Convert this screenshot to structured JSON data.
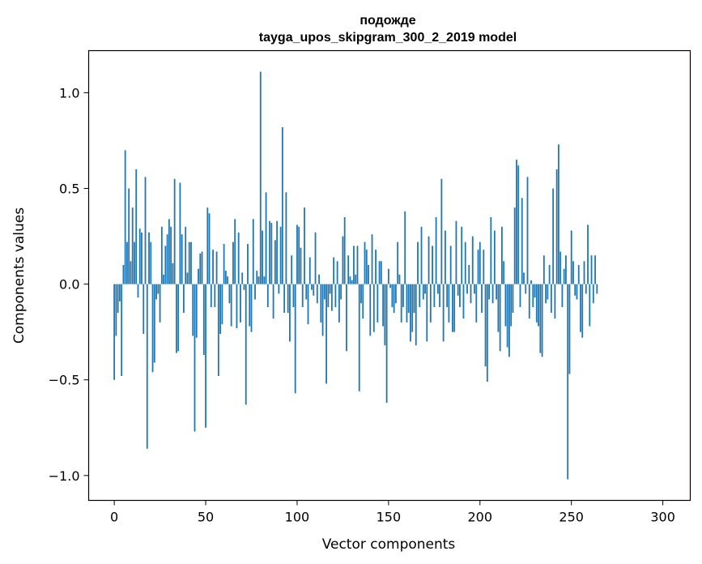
{
  "chart_data": {
    "type": "bar",
    "title_lines": [
      "подожде",
      "tayga_upos_skipgram_300_2_2019 model"
    ],
    "xlabel": "Vector components",
    "ylabel": "Components values",
    "xlim": [
      -14,
      315
    ],
    "ylim": [
      -1.13,
      1.22
    ],
    "xticks": [
      0,
      50,
      100,
      150,
      200,
      250,
      300
    ],
    "xtick_labels": [
      "0",
      "50",
      "100",
      "150",
      "200",
      "250",
      "300"
    ],
    "yticks": [
      -1.0,
      -0.5,
      0.0,
      0.5,
      1.0
    ],
    "ytick_labels": [
      "−1.0",
      "−0.5",
      "0.0",
      "0.5",
      "1.0"
    ],
    "bar_color": "#1f77b4",
    "values": [
      -0.5,
      -0.27,
      -0.15,
      -0.09,
      -0.48,
      0.1,
      0.7,
      0.22,
      0.5,
      0.12,
      0.4,
      0.22,
      0.6,
      -0.07,
      0.29,
      0.27,
      -0.26,
      0.56,
      -0.86,
      0.27,
      0.22,
      -0.46,
      -0.41,
      -0.08,
      -0.05,
      -0.2,
      0.3,
      0.05,
      0.2,
      0.26,
      0.34,
      0.3,
      0.11,
      0.55,
      -0.36,
      -0.35,
      0.53,
      0.26,
      -0.15,
      0.3,
      0.06,
      0.22,
      0.22,
      -0.27,
      -0.77,
      -0.28,
      0.08,
      0.16,
      0.17,
      -0.37,
      -0.75,
      0.4,
      0.37,
      -0.12,
      0.18,
      -0.12,
      0.17,
      -0.48,
      -0.26,
      -0.21,
      0.21,
      0.07,
      0.04,
      -0.1,
      -0.22,
      0.22,
      0.34,
      -0.23,
      0.27,
      -0.2,
      0.06,
      -0.03,
      -0.63,
      0.21,
      -0.22,
      -0.25,
      0.34,
      -0.08,
      0.07,
      0.04,
      1.11,
      0.28,
      0.04,
      0.48,
      -0.12,
      0.33,
      0.32,
      -0.18,
      0.23,
      0.33,
      -0.05,
      0.3,
      0.82,
      -0.15,
      0.48,
      -0.15,
      -0.3,
      0.15,
      -0.12,
      -0.57,
      0.31,
      0.3,
      0.19,
      -0.12,
      0.4,
      -0.08,
      -0.21,
      0.14,
      -0.03,
      -0.06,
      0.27,
      -0.1,
      0.05,
      -0.2,
      -0.27,
      -0.08,
      -0.52,
      -0.12,
      -0.05,
      -0.14,
      0.14,
      -0.12,
      0.12,
      -0.2,
      -0.08,
      0.25,
      0.35,
      -0.35,
      0.15,
      0.04,
      0.02,
      0.2,
      0.05,
      0.2,
      -0.56,
      -0.1,
      -0.18,
      0.22,
      0.18,
      0.1,
      -0.27,
      0.26,
      -0.25,
      0.18,
      -0.2,
      0.12,
      0.12,
      -0.22,
      -0.32,
      -0.62,
      0.08,
      -0.02,
      -0.12,
      -0.15,
      -0.1,
      0.22,
      0.05,
      -0.2,
      -0.12,
      0.38,
      -0.2,
      -0.15,
      -0.3,
      -0.25,
      -0.15,
      -0.32,
      0.22,
      -0.12,
      0.3,
      -0.08,
      -0.05,
      -0.3,
      0.25,
      -0.2,
      0.2,
      -0.12,
      0.35,
      -0.05,
      -0.12,
      0.55,
      -0.3,
      0.28,
      -0.12,
      -0.2,
      0.2,
      -0.25,
      -0.25,
      0.33,
      -0.06,
      -0.12,
      0.3,
      -0.18,
      0.22,
      -0.05,
      0.1,
      -0.1,
      0.25,
      -0.05,
      -0.2,
      0.18,
      0.22,
      -0.15,
      0.18,
      -0.43,
      -0.51,
      -0.08,
      0.35,
      -0.1,
      0.28,
      -0.08,
      -0.25,
      -0.35,
      0.3,
      0.12,
      -0.22,
      -0.33,
      -0.38,
      -0.22,
      -0.15,
      0.4,
      0.65,
      0.62,
      -0.12,
      0.45,
      0.06,
      -0.05,
      0.56,
      -0.18,
      0.02,
      -0.12,
      -0.07,
      -0.2,
      -0.22,
      -0.36,
      -0.38,
      0.15,
      -0.1,
      -0.08,
      0.1,
      -0.15,
      0.5,
      -0.18,
      0.6,
      0.73,
      0.17,
      -0.12,
      0.08,
      0.15,
      -1.02,
      -0.47,
      0.28,
      0.12,
      -0.06,
      -0.08,
      0.1,
      -0.25,
      -0.28,
      0.12,
      -0.05,
      0.31,
      -0.22,
      0.15,
      -0.1,
      0.15,
      -0.05
    ]
  }
}
